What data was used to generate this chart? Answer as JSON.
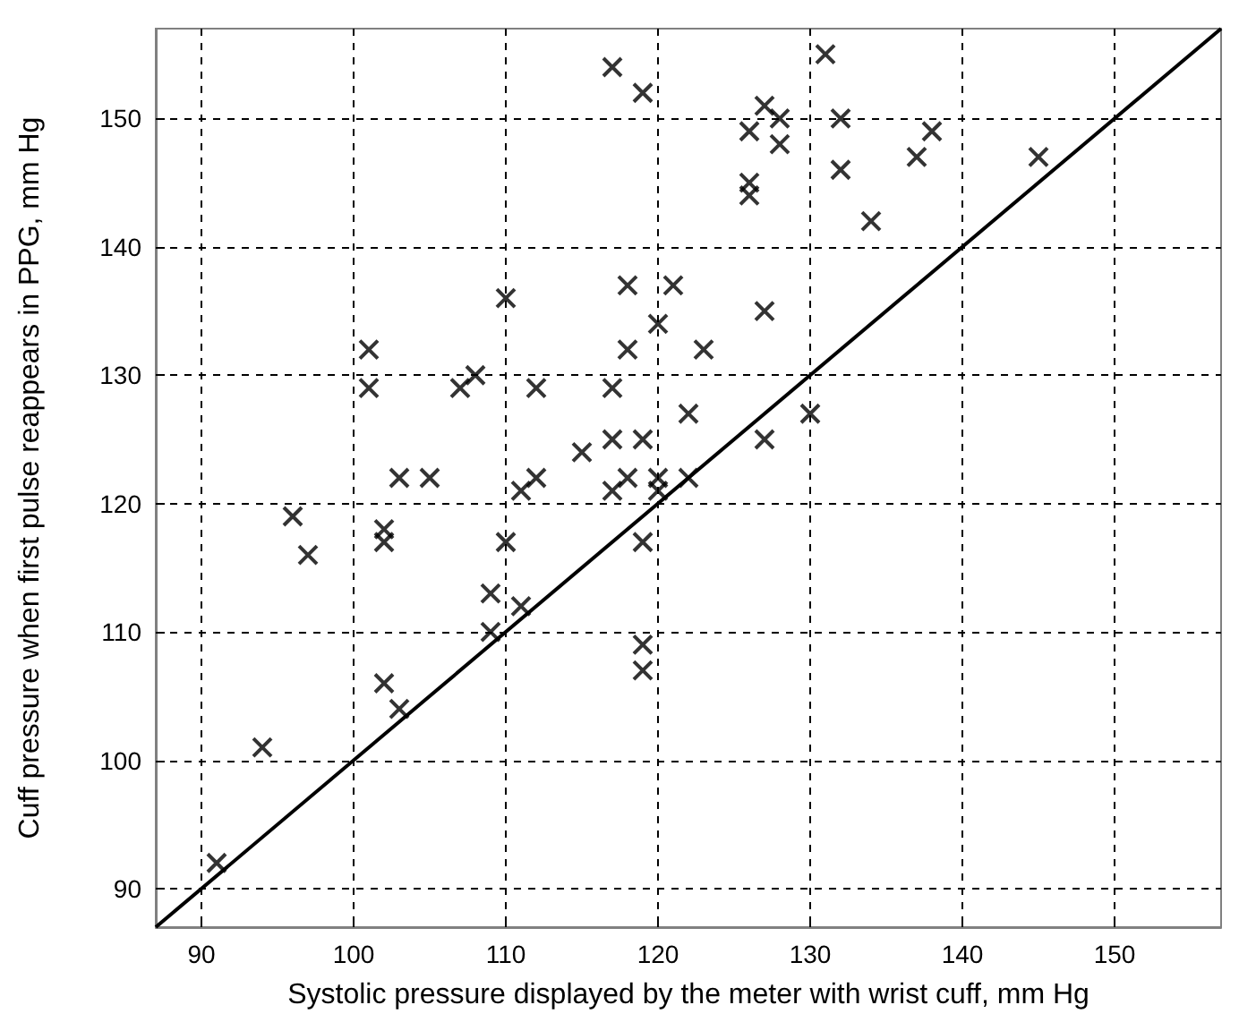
{
  "chart_data": {
    "type": "scatter",
    "xlabel": "Systolic pressure displayed by the meter with wrist cuff, mm Hg",
    "ylabel": "Cuff pressure when first pulse reappears in PPG, mm Hg",
    "xlim": [
      87,
      157
    ],
    "ylim": [
      87,
      157
    ],
    "xticks": [
      90,
      100,
      110,
      120,
      130,
      140,
      150
    ],
    "yticks": [
      90,
      100,
      110,
      120,
      130,
      140,
      150
    ],
    "grid": true,
    "series": [
      {
        "type": "scatter",
        "color": "#000000",
        "marker": "cross",
        "x": [
          91,
          94,
          96,
          97,
          101,
          101,
          102,
          102,
          102,
          103,
          103,
          105,
          107,
          108,
          109,
          109,
          110,
          110,
          111,
          111,
          112,
          112,
          115,
          117,
          117,
          117,
          117,
          118,
          118,
          118,
          119,
          119,
          119,
          119,
          119,
          120,
          120,
          120,
          121,
          122,
          122,
          123,
          126,
          126,
          126,
          127,
          127,
          127,
          128,
          128,
          130,
          131,
          132,
          132,
          134,
          137,
          138,
          145
        ],
        "values": [
          92,
          101,
          119,
          116,
          132,
          129,
          118,
          117,
          106,
          104,
          122,
          122,
          129,
          130,
          113,
          110,
          136,
          117,
          112,
          121,
          122,
          129,
          124,
          154,
          129,
          125,
          121,
          137,
          132,
          122,
          152,
          125,
          117,
          109,
          107,
          134,
          122,
          121,
          137,
          127,
          122,
          132,
          149,
          145,
          144,
          151,
          135,
          125,
          150,
          148,
          127,
          155,
          150,
          146,
          142,
          147,
          149,
          147
        ]
      },
      {
        "type": "line",
        "color": "#000000",
        "marker": "none",
        "line_style": "solid",
        "x": [
          87,
          157
        ],
        "values": [
          87,
          157
        ]
      }
    ]
  }
}
